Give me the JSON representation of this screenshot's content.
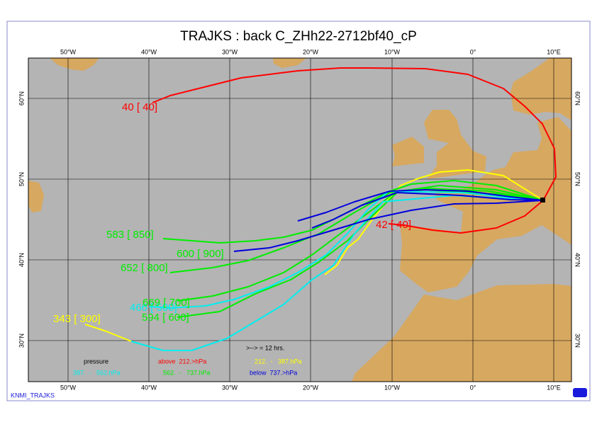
{
  "title": "TRAJKS : back C_ZHh22-2712bf40_cP",
  "map": {
    "lon_labels": [
      "50°W",
      "40°W",
      "30°W",
      "20°W",
      "10°W",
      "0°",
      "10°E"
    ],
    "lat_labels": [
      "60°N",
      "50°N",
      "40°N",
      "30°N"
    ]
  },
  "trajectory_labels": [
    {
      "text": "40 [ 40]",
      "color": "#ff0000"
    },
    {
      "text": "42 [ 40]",
      "color": "#ff0000"
    },
    {
      "text": "583 [ 850]",
      "color": "#00ee00"
    },
    {
      "text": "600 [ 900]",
      "color": "#00ee00"
    },
    {
      "text": "652 [ 800]",
      "color": "#00ee00"
    },
    {
      "text": "466 [ 500]",
      "color": "#00eeee"
    },
    {
      "text": "669 [ 700]",
      "color": "#00ee00"
    },
    {
      "text": "594 [ 600]",
      "color": "#00ee00"
    },
    {
      "text": "343 [ 300]",
      "color": "#ffff00"
    }
  ],
  "legend": {
    "interval": ">--> = 12 hrs.",
    "pressure": "pressure",
    "ranges": [
      {
        "text": "above  212.>hPa",
        "color": "#ff0000"
      },
      {
        "text": "212.  -   387.hPa",
        "color": "#ffff00"
      },
      {
        "text": "387.  -   562.hPa",
        "color": "#00eeee"
      },
      {
        "text": "562.  -   737.hPa",
        "color": "#00ee00"
      },
      {
        "text": "below  737.>hPa",
        "color": "#0000dd"
      }
    ]
  },
  "footer": "KNMI_TRAJKS"
}
